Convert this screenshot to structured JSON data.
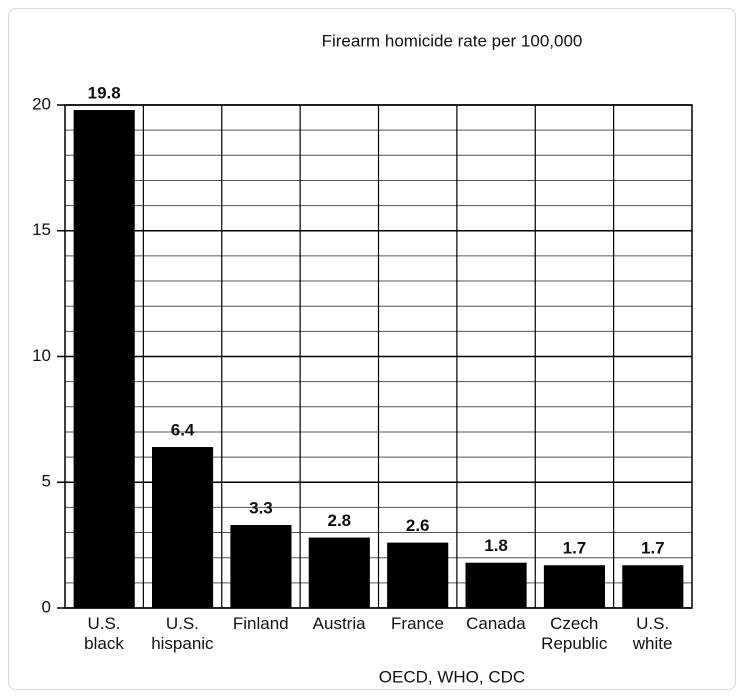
{
  "chart_data": {
    "type": "bar",
    "title": "Firearm homicide rate per 100,000",
    "x_label": "OECD, WHO, CDC",
    "categories": [
      "U.S.\nblack",
      "U.S.\nhispanic",
      "Finland",
      "Austria",
      "France",
      "Canada",
      "Czech\nRepublic",
      "U.S.\nwhite"
    ],
    "values": [
      19.8,
      6.4,
      3.3,
      2.8,
      2.6,
      1.8,
      1.7,
      1.7
    ],
    "color": "#000000",
    "ylim": [
      0,
      20
    ],
    "yticks": [
      0,
      5,
      10,
      15,
      20
    ],
    "minor_yticks": [
      1,
      2,
      3,
      4,
      6,
      7,
      8,
      9,
      11,
      12,
      13,
      14,
      16,
      17,
      18,
      19
    ],
    "grid": true
  }
}
